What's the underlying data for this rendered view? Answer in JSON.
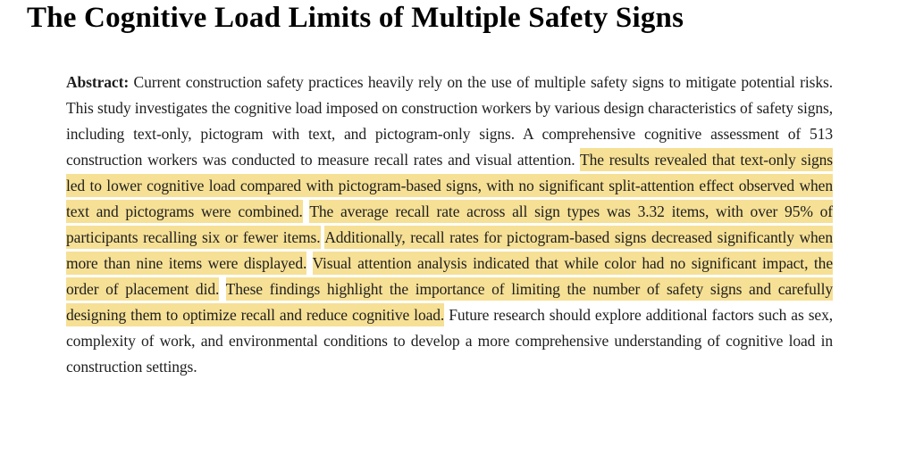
{
  "title": "The Cognitive Load Limits of Multiple Safety Signs",
  "colors": {
    "background": "#ffffff",
    "title_text": "#000000",
    "body_text": "#1e1e1e",
    "highlight": "#f6e095"
  },
  "abstract": {
    "label": "Abstract:",
    "segments": [
      {
        "text": " Current construction safety practices heavily rely on the use of multiple safety signs to mitigate potential risks. This study investigates the cognitive load imposed on construction workers by various design characteristics of safety signs, including text-only, pictogram with text, and pictogram-only signs. A comprehensive cognitive assessment of 513 construction workers was conducted to measure recall rates and visual attention. ",
        "highlight": false
      },
      {
        "text": "The results revealed that text-only signs led to lower cognitive load compared with pictogram-based signs, with no significant split-attention effect observed when text and pictograms were combined.",
        "highlight": true
      },
      {
        "text": " ",
        "highlight": false
      },
      {
        "text": "The average recall rate across all sign types was 3.32 items, with over 95% of participants recalling six or fewer items.",
        "highlight": true
      },
      {
        "text": " ",
        "highlight": false
      },
      {
        "text": "Additionally, recall rates for pictogram-based signs decreased significantly when more than nine items were displayed.",
        "highlight": true
      },
      {
        "text": " ",
        "highlight": false
      },
      {
        "text": "Visual attention analysis indicated that while color had no significant impact, the order of placement did.",
        "highlight": true
      },
      {
        "text": " ",
        "highlight": false
      },
      {
        "text": "These findings highlight the importance of limiting the number of safety signs and carefully designing them to optimize recall and reduce cognitive load.",
        "highlight": true
      },
      {
        "text": " Future research should explore additional factors such as sex, complexity of work, and environmental conditions to develop a more comprehensive understanding of cognitive load in construction settings.",
        "highlight": false
      }
    ]
  }
}
